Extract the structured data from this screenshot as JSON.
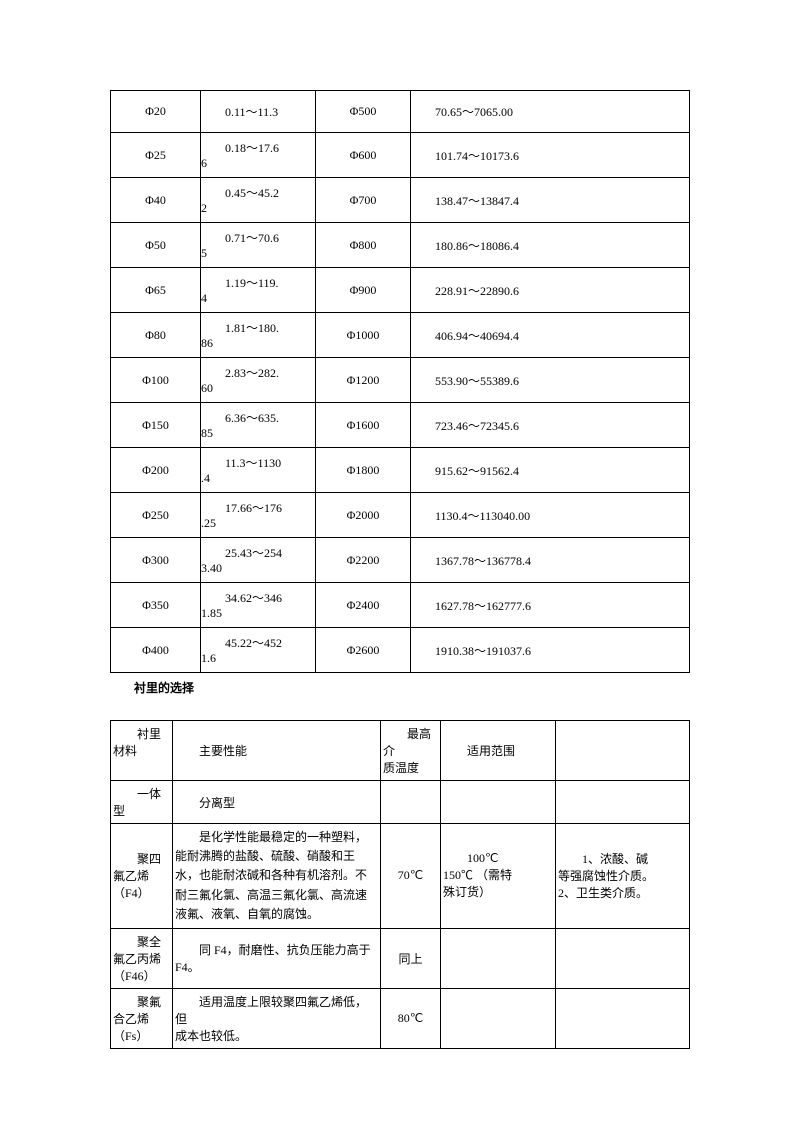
{
  "table1": {
    "rows": [
      {
        "c1": "Φ20",
        "c2a": "0.11～11.3",
        "c2b": "",
        "c3": "Φ500",
        "c4": "70.65～7065.00"
      },
      {
        "c1": "Φ25",
        "c2a": "0.18～17.6",
        "c2b": "6",
        "c3": "Φ600",
        "c4": "101.74～10173.6"
      },
      {
        "c1": "Φ40",
        "c2a": "0.45～45.2",
        "c2b": "2",
        "c3": "Φ700",
        "c4": "138.47～13847.4"
      },
      {
        "c1": "Φ50",
        "c2a": "0.71～70.6",
        "c2b": "5",
        "c3": "Φ800",
        "c4": "180.86～18086.4"
      },
      {
        "c1": "Φ65",
        "c2a": "1.19～119.",
        "c2b": "4",
        "c3": "Φ900",
        "c4": "228.91～22890.6"
      },
      {
        "c1": "Φ80",
        "c2a": "1.81～180.",
        "c2b": "86",
        "c3": "Φ1000",
        "c4": "406.94～40694.4"
      },
      {
        "c1": "Φ100",
        "c2a": "2.83～282.",
        "c2b": "60",
        "c3": "Φ1200",
        "c4": "553.90～55389.6"
      },
      {
        "c1": "Φ150",
        "c2a": "6.36～635.",
        "c2b": "85",
        "c3": "Φ1600",
        "c4": "723.46～72345.6"
      },
      {
        "c1": "Φ200",
        "c2a": "11.3～1130",
        "c2b": ".4",
        "c3": "Φ1800",
        "c4": "915.62～91562.4"
      },
      {
        "c1": "Φ250",
        "c2a": "17.66～176",
        "c2b": ".25",
        "c3": "Φ2000",
        "c4": "1130.4～113040.00"
      },
      {
        "c1": "Φ300",
        "c2a": "25.43～254",
        "c2b": "3.40",
        "c3": "Φ2200",
        "c4": "1367.78～136778.4"
      },
      {
        "c1": "Φ350",
        "c2a": "34.62～346",
        "c2b": "1.85",
        "c3": "Φ2400",
        "c4": "1627.78～162777.6"
      },
      {
        "c1": "Φ400",
        "c2a": "45.22～452",
        "c2b": "1.6",
        "c3": "Φ2600",
        "c4": "1910.38～191037.6"
      }
    ]
  },
  "section_title": "衬里的选择",
  "table2": {
    "header": {
      "h1a": "衬里",
      "h1b": "材料",
      "h2": "主要性能",
      "h3a": "最高介",
      "h3b": "质温度",
      "h4": "适用范围"
    },
    "row_type": {
      "c1a": "一体",
      "c1b": "型",
      "c2": "分离型"
    },
    "row_f4": {
      "c1a": "聚四",
      "c1b": "氟乙烯",
      "c1c": "（F4）",
      "c2": "是化学性能最稳定的一种塑料，能耐沸腾的盐酸、硫酸、硝酸和王水，也能耐浓碱和各种有机溶剂。不耐三氟化氯、高温三氟化氯、高流速液氟、液氧、自氧的腐蚀。",
      "c3": "70℃",
      "c4a": "100℃",
      "c4b": "150℃ （需特",
      "c4c": "殊订货）",
      "c5a": "1、浓酸、碱",
      "c5b": "等强腐蚀性介质。",
      "c5c": "2、卫生类介质。"
    },
    "row_f46": {
      "c1a": "聚全",
      "c1b": "氟乙丙烯",
      "c1c": "（F46）",
      "c2a": "同 F4，耐磨性、抗负压能力高于",
      "c2b": "F4。",
      "c3": "同上"
    },
    "row_fs": {
      "c1a": "聚氟",
      "c1b": "合乙烯",
      "c1c": "（Fs）",
      "c2a": "适用温度上限较聚四氟乙烯低，但",
      "c2b": "成本也较低。",
      "c3": "80℃"
    }
  }
}
